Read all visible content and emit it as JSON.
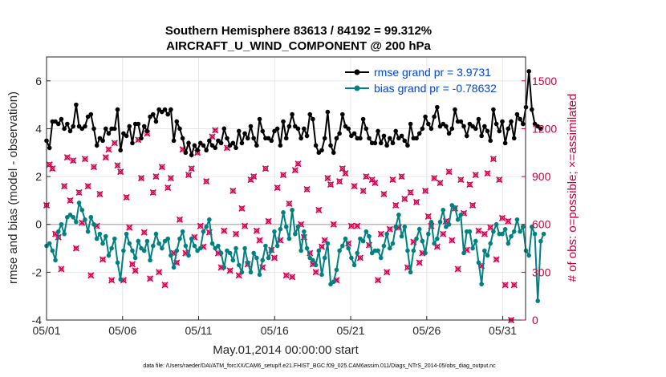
{
  "chart_data": {
    "type": "line",
    "title": "Southern Hemisphere 83613 / 84192 = 99.312%",
    "subtitle": "AIRCRAFT_U_WIND_COMPONENT @ 200 hPa",
    "xlabel": "May.01,2014 00:00:00 start",
    "ylabel": "rmse and bias (model - observation)",
    "y2label": "# of obs: o=possible; ×=assimilated",
    "footer": "data file: /Users/raeder/DAI/ATM_forcXX/CAM6_setup/f.e21.FHIST_BGC.f09_025.CAM6assim.011/Diags_NTrS_2014-05/obs_diag_output.nc",
    "xlim": [
      0,
      31.5
    ],
    "ylim": [
      -4,
      7
    ],
    "y2lim": [
      0,
      1650
    ],
    "xticks": [
      0,
      5,
      10,
      15,
      20,
      25,
      30
    ],
    "xtick_labels": [
      "05/01",
      "05/06",
      "05/11",
      "05/16",
      "05/21",
      "05/26",
      "05/31"
    ],
    "yticks": [
      -4,
      -2,
      0,
      2,
      4,
      6
    ],
    "ytick_labels": [
      "-4",
      "-2",
      "0",
      "2",
      "4",
      "6"
    ],
    "y2ticks": [
      0,
      300,
      600,
      900,
      1200,
      1500
    ],
    "y2tick_labels": [
      "0",
      "300",
      "600",
      "900",
      "1200",
      "1500"
    ],
    "legend_position": "top-right",
    "legend": [
      "rmse grand pr = 3.9731",
      "bias grand pr = -0.78632"
    ],
    "colors": {
      "rmse": "#000000",
      "bias": "#008080",
      "obs": "#d4004f",
      "zero": "#bbbbbb"
    },
    "series": [
      {
        "name": "rmse",
        "values": [
          3.5,
          3.2,
          4.3,
          4.3,
          4.2,
          4.4,
          4.0,
          4.2,
          3.9,
          4.1,
          5.0,
          4.1,
          4.0,
          4.1,
          4.5,
          4.6,
          4.0,
          3.3,
          3.6,
          3.5,
          4.0,
          3.8,
          4.0,
          4.0,
          4.8,
          3.1,
          3.8,
          3.7,
          4.1,
          3.4,
          4.2,
          4.2,
          3.6,
          4.1,
          3.9,
          4.5,
          4.6,
          4.3,
          4.8,
          4.7,
          4.8,
          4.6,
          4.8,
          3.5,
          4.3,
          4.0,
          3.6,
          3.0,
          3.4,
          2.9,
          3.3,
          3.1,
          3.4,
          3.3,
          3.1,
          3.5,
          3.3,
          3.2,
          3.5,
          3.4,
          4.0,
          3.6,
          3.3,
          3.4,
          3.2,
          3.9,
          3.4,
          3.8,
          3.6,
          4.1,
          3.6,
          3.3,
          4.4,
          3.9,
          3.6,
          3.6,
          3.5,
          3.9,
          4.0,
          3.3,
          4.3,
          3.6,
          4.1,
          4.6,
          4.1,
          4.0,
          3.6,
          4.0,
          3.7,
          4.6,
          4.4,
          3.3,
          3.0,
          3.1,
          3.6,
          4.7,
          3.3,
          3.0,
          3.6,
          3.8,
          4.6,
          4.1,
          4.0,
          3.7,
          3.8,
          3.6,
          3.6,
          4.4,
          4.0,
          3.6,
          3.4,
          3.4,
          3.9,
          3.4,
          3.7,
          3.3,
          3.6,
          3.4,
          3.9,
          3.6,
          3.7,
          3.5,
          3.3,
          4.2,
          3.6,
          3.6,
          3.8,
          4.0,
          4.5,
          4.2,
          4.0,
          4.5,
          4.9,
          4.1,
          4.2,
          4.1,
          3.8,
          4.0,
          4.8,
          4.3,
          4.3,
          4.1,
          3.7,
          4.2,
          4.1,
          4.0,
          4.4,
          3.7,
          4.1,
          3.9,
          3.5,
          4.8,
          4.2,
          3.9,
          4.3,
          3.4,
          4.0,
          4.3,
          3.6,
          4.6,
          4.4,
          4.2,
          4.9,
          6.4,
          4.8,
          4.2,
          4.1,
          4.0
        ],
        "x_start": 0,
        "x_step": 0.1946
      },
      {
        "name": "bias",
        "values": [
          -0.9,
          -0.8,
          -1.1,
          -1.5,
          -0.3,
          0.0,
          -0.4,
          0.3,
          0.4,
          0.3,
          0.1,
          0.9,
          0.6,
          0.2,
          -0.3,
          0.3,
          0.0,
          -0.6,
          -0.4,
          -0.8,
          -0.5,
          -1.3,
          -1.0,
          -0.6,
          -1.6,
          -2.3,
          -1.1,
          -0.4,
          -0.8,
          -1.1,
          -1.4,
          -0.7,
          -1.0,
          -1.1,
          -0.7,
          -1.5,
          -0.9,
          -0.4,
          -0.8,
          -1.0,
          -0.7,
          -0.6,
          -1.3,
          -1.8,
          -1.1,
          -0.6,
          -0.3,
          -0.9,
          -1.3,
          -0.6,
          -0.9,
          -1.1,
          -1.0,
          -0.3,
          -0.1,
          0.2,
          -0.8,
          -1.0,
          -0.9,
          -1.2,
          -1.8,
          -1.1,
          -1.2,
          -1.5,
          -1.0,
          -1.7,
          -2.0,
          -1.0,
          -1.6,
          -2.0,
          -1.2,
          -1.4,
          -2.1,
          -1.5,
          -0.9,
          -1.4,
          -1.1,
          -0.3,
          -0.9,
          -0.2,
          0.5,
          -0.1,
          -0.6,
          0.6,
          -0.4,
          -0.1,
          -1.1,
          -0.3,
          -1.0,
          -1.4,
          -1.5,
          -1.7,
          -1.1,
          -2.1,
          -1.4,
          -0.8,
          -2.5,
          -2.4,
          -1.9,
          -1.1,
          -0.9,
          -0.6,
          -1.0,
          -1.4,
          -1.7,
          -1.2,
          -0.6,
          -0.7,
          -0.3,
          -0.5,
          -1.2,
          -1.1,
          -1.1,
          -1.4,
          -0.9,
          -0.4,
          -1.0,
          -0.8,
          -0.1,
          0.4,
          -0.5,
          -0.1,
          -1.1,
          -2.0,
          -1.1,
          -0.6,
          -0.2,
          -0.7,
          -1.2,
          -0.4,
          0.1,
          -0.8,
          -0.6,
          0.1,
          0.6,
          -0.1,
          0.0,
          0.8,
          0.7,
          0.2,
          0.4,
          -1.2,
          -0.3,
          -0.3,
          -1.0,
          -0.7,
          -1.6,
          -2.5,
          -1.1,
          -1.3,
          -0.8,
          -0.3,
          0.0,
          -0.4,
          -0.4,
          -0.2,
          -0.8,
          -0.5,
          -0.3,
          0.2,
          -0.3,
          -0.1,
          -1.1,
          -1.3,
          -0.1,
          -0.4,
          -3.2,
          -0.7,
          -0.4
        ],
        "x_start": 0,
        "x_step": 0.1946
      },
      {
        "name": "obs_count",
        "axis": "right",
        "values": [
          720,
          975,
          950,
          540,
          520,
          320,
          840,
          1020,
          750,
          1000,
          450,
          800,
          610,
          1010,
          840,
          280,
          960,
          590,
          790,
          380,
          1020,
          1070,
          250,
          1110,
          970,
          930,
          250,
          770,
          580,
          350,
          310,
          1130,
          890,
          550,
          1170,
          260,
          800,
          900,
          300,
          960,
          220,
          830,
          890,
          420,
          360,
          630,
          1070,
          420,
          910,
          950,
          520,
          1050,
          590,
          460,
          870,
          550,
          1150,
          1190,
          420,
          330,
          560,
          1080,
          310,
          810,
          540,
          280,
          700,
          590,
          350,
          880,
          900,
          560,
          500,
          330,
          950,
          620,
          440,
          390,
          830,
          500,
          910,
          280,
          730,
          270,
          940,
          980,
          600,
          520,
          820,
          420,
          350,
          300,
          690,
          460,
          500,
          890,
          850,
          600,
          250,
          870,
          950,
          920,
          480,
          590,
          840,
          590,
          390,
          810,
          900,
          470,
          880,
          860,
          250,
          540,
          790,
          300,
          570,
          880,
          720,
          580,
          900,
          760,
          330,
          800,
          490,
          740,
          360,
          420,
          810,
          650,
          590,
          890,
          460,
          860,
          540,
          620,
          930,
          500,
          700,
          320,
          880,
          670,
          440,
          850,
          720,
          910,
          560,
          340,
          540,
          920,
          580,
          1010,
          380,
          880,
          640,
          220,
          620,
          0,
          220
        ],
        "x_start": 0,
        "x_step": 0.1946
      }
    ]
  }
}
